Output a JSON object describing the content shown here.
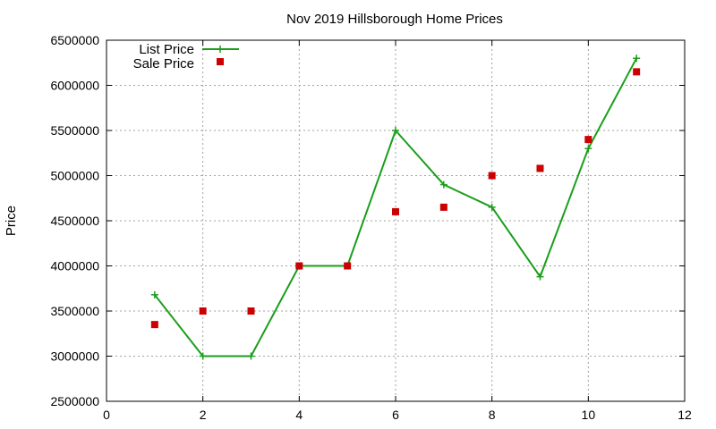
{
  "chart_data": {
    "type": "line",
    "title": "Nov 2019 Hillsborough Home Prices",
    "xlabel": "",
    "ylabel": "Price",
    "xlim": [
      0,
      12
    ],
    "ylim": [
      2500000,
      6500000
    ],
    "x_ticks": [
      0,
      2,
      4,
      6,
      8,
      10,
      12
    ],
    "y_ticks": [
      2500000,
      3000000,
      3500000,
      4000000,
      4500000,
      5000000,
      5500000,
      6000000,
      6500000
    ],
    "grid": true,
    "legend_position": "top-left",
    "series": [
      {
        "name": "List Price",
        "style": "line+cross",
        "color": "#1a9e1a",
        "x": [
          1,
          2,
          3,
          4,
          5,
          6,
          7,
          8,
          9,
          10,
          11
        ],
        "values": [
          3680000,
          3000000,
          3000000,
          4000000,
          4000000,
          5500000,
          4900000,
          4650000,
          3880000,
          5300000,
          6300000
        ]
      },
      {
        "name": "Sale Price",
        "style": "square",
        "color": "#cc0000",
        "x": [
          1,
          2,
          3,
          4,
          5,
          6,
          7,
          8,
          9,
          10,
          11
        ],
        "values": [
          3350000,
          3500000,
          3500000,
          4000000,
          4000000,
          4600000,
          4650000,
          5000000,
          5080000,
          5400000,
          6150000
        ]
      }
    ]
  }
}
